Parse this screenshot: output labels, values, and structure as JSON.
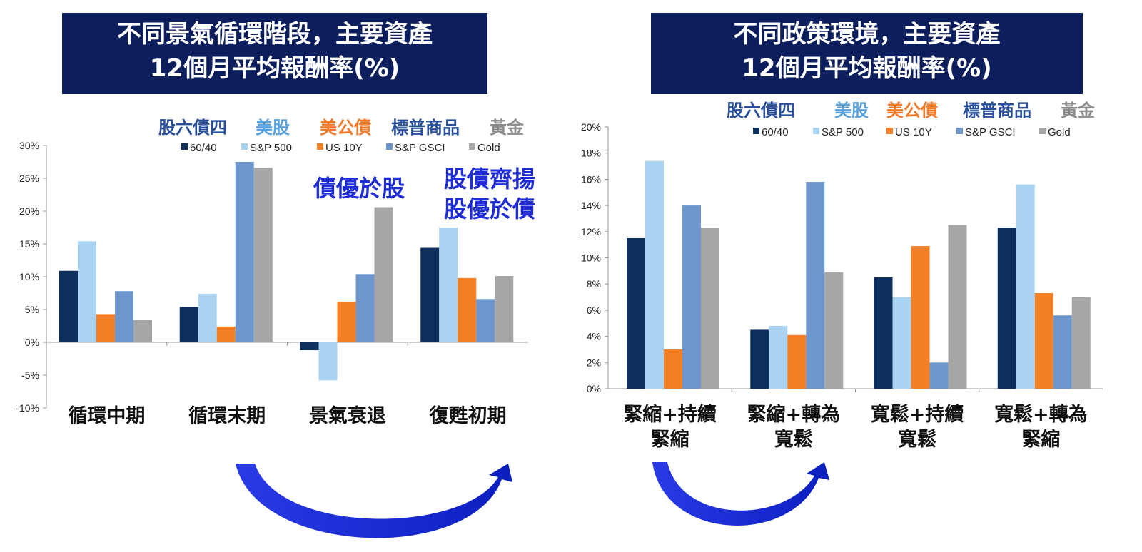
{
  "colors": {
    "title_bg": "#0c1f5c",
    "series": [
      "#0d2f5e",
      "#a9d3f1",
      "#f47f24",
      "#6d97cc",
      "#a6a6a6"
    ],
    "series_cn_label": [
      "#2a4f9a",
      "#5aa2dc",
      "#ee7a2a",
      "#2a4f9a",
      "#8c8c8c"
    ],
    "annotation": "#1f2dd6",
    "arrow": "#1428d8"
  },
  "series_cn": [
    "股六債四",
    "美股",
    "美公債",
    "標普商品",
    "黃金"
  ],
  "legend": [
    "60/40",
    "S&P 500",
    "US 10Y",
    "S&P GSCI",
    "Gold"
  ],
  "chart_data": [
    {
      "type": "bar",
      "title": "不同景氣循環階段，主要資產\n12個月平均報酬率(%)",
      "categories": [
        "循環中期",
        "循環末期",
        "景氣衰退",
        "復甦初期"
      ],
      "series": [
        {
          "name": "60/40",
          "values": [
            10.9,
            5.4,
            -1.2,
            14.4
          ]
        },
        {
          "name": "S&P 500",
          "values": [
            15.4,
            7.4,
            -5.8,
            17.5
          ]
        },
        {
          "name": "US 10Y",
          "values": [
            4.3,
            2.4,
            6.2,
            9.8
          ]
        },
        {
          "name": "S&P GSCI",
          "values": [
            7.8,
            27.5,
            10.4,
            6.6
          ]
        },
        {
          "name": "Gold",
          "values": [
            3.4,
            26.6,
            20.6,
            10.1
          ]
        }
      ],
      "ylim": [
        -10,
        30
      ],
      "yticks": [
        "-10%",
        "-5%",
        "0%",
        "5%",
        "10%",
        "15%",
        "20%",
        "25%",
        "30%"
      ],
      "annotations": [
        "債優於股",
        "股債齊揚",
        "股優於債"
      ],
      "legend_position": "top"
    },
    {
      "type": "bar",
      "title": "不同政策環境，主要資產\n12個月平均報酬率(%)",
      "categories": [
        "緊縮+持續\n緊縮",
        "緊縮+轉為\n寬鬆",
        "寬鬆+持續\n寬鬆",
        "寬鬆+轉為\n緊縮"
      ],
      "series": [
        {
          "name": "60/40",
          "values": [
            11.5,
            4.5,
            8.5,
            12.3
          ]
        },
        {
          "name": "S&P 500",
          "values": [
            17.4,
            4.8,
            7.0,
            15.6
          ]
        },
        {
          "name": "US 10Y",
          "values": [
            3.0,
            4.1,
            10.9,
            7.3
          ]
        },
        {
          "name": "S&P GSCI",
          "values": [
            14.0,
            15.8,
            2.0,
            5.6
          ]
        },
        {
          "name": "Gold",
          "values": [
            12.3,
            8.9,
            12.5,
            7.0
          ]
        }
      ],
      "ylim": [
        0,
        20
      ],
      "yticks": [
        "0%",
        "2%",
        "4%",
        "6%",
        "8%",
        "10%",
        "12%",
        "14%",
        "16%",
        "18%",
        "20%"
      ],
      "legend_position": "top"
    }
  ]
}
